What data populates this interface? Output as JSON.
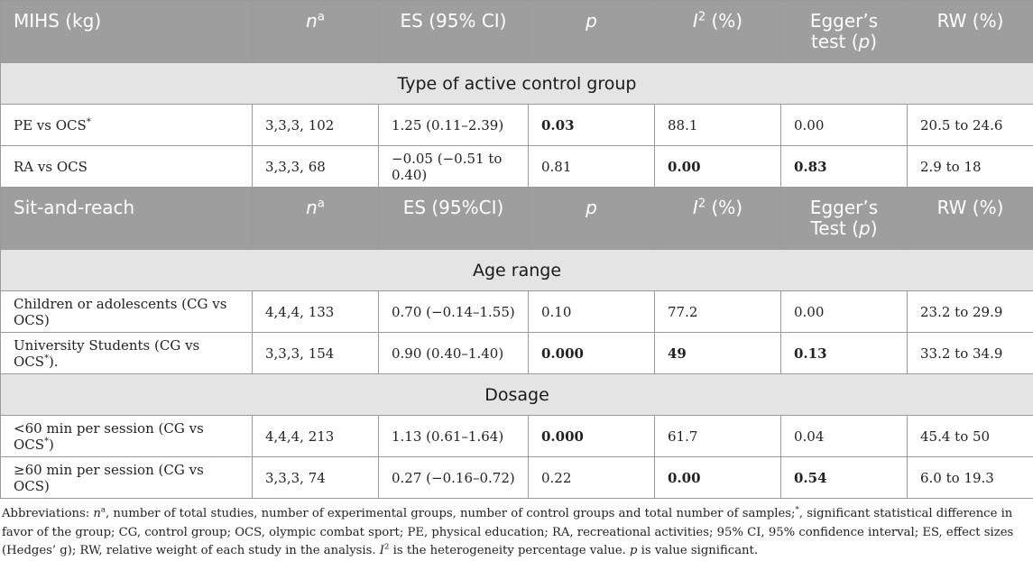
{
  "table1": {
    "header": {
      "col1": "MIHS (kg)",
      "n": "n",
      "n_sup": "a",
      "es": "ES (95% CI)",
      "p": "p",
      "i2": "I",
      "i2_sup": "2",
      "i2_unit": " (%)",
      "egger_line1": "Egger’s",
      "egger_line2": "test (",
      "egger_p": "p",
      "egger_close": ")",
      "rw": "RW (%)"
    },
    "section": "Type of active control group",
    "rows": [
      {
        "label": "PE vs OCS",
        "star": "*",
        "n": "3,3,3, 102",
        "es": "1.25 (0.11–2.39)",
        "p": "0.03",
        "i2": "88.1",
        "egger": "0.00",
        "rw": "20.5 to 24.6"
      },
      {
        "label": "RA vs OCS",
        "star": "",
        "n": "3,3,3, 68",
        "es": "−0.05 (−0.51 to 0.40)",
        "p": "0.81",
        "i2": "0.00",
        "egger": "0.83",
        "rw": "2.9 to 18"
      }
    ]
  },
  "table2": {
    "header": {
      "col1": "Sit-and-reach",
      "n": "n",
      "n_sup": "a",
      "es": "ES (95%CI)",
      "p": "p",
      "i2": "I",
      "i2_sup": "2",
      "i2_unit": " (%)",
      "egger_line1": "Egger’s",
      "egger_line2": "Test (",
      "egger_p": "p",
      "egger_close": ")",
      "rw": "RW (%)"
    },
    "section_age": "Age range",
    "age_rows": [
      {
        "label": "Children or adolescents (CG vs OCS)",
        "n": "4,4,4, 133",
        "es": "0.70 (−0.14–1.55)",
        "p": "0.10",
        "i2": "77.2",
        "egger": "0.00",
        "rw": "23.2 to 29.9"
      },
      {
        "label": "University Students (CG vs OCS",
        "star": "*",
        "label_end": ").",
        "n": "3,3,3, 154",
        "es": "0.90 (0.40–1.40)",
        "p": "0.000",
        "i2": "49",
        "egger": "0.13",
        "rw": "33.2 to 34.9"
      }
    ],
    "section_dosage": "Dosage",
    "dosage_rows": [
      {
        "label": "<60 min per session (CG vs OCS",
        "star": "*",
        "label_end": ")",
        "n": "4,4,4, 213",
        "es": "1.13 (0.61–1.64)",
        "p": "0.000",
        "i2": "61.7",
        "egger": "0.04",
        "rw": "45.4 to 50"
      },
      {
        "label": "≥60 min per session (CG vs OCS)",
        "n": "3,3,3, 74",
        "es": "0.27 (−0.16–0.72)",
        "p": "0.22",
        "i2": "0.00",
        "egger": "0.54",
        "rw": "6.0 to 19.3"
      }
    ]
  },
  "footnote": {
    "prefix": "Abbreviations: ",
    "n": "n",
    "n_sup": "a",
    "text1": ", number of total studies, number of experimental groups, number of control groups and total number of samples;",
    "star": "*",
    "text2": ", significant statistical difference in favor of the group; CG, control group; OCS, olympic combat sport; PE, physical education; RA, recreational activities; 95% CI, 95% confidence interval; ES, effect sizes (Hedges’ g); RW, relative weight of each study in the analysis. ",
    "i2": "I",
    "i2_sup": "2",
    "text3": " is the heterogeneity percentage value. ",
    "p": "p",
    "text4": " is value significant."
  }
}
